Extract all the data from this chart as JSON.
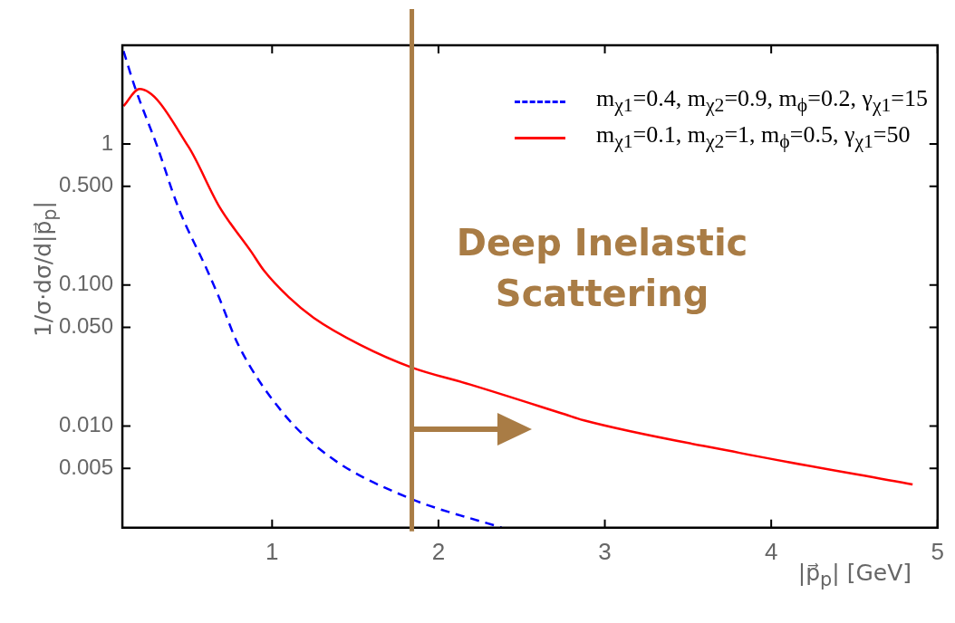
{
  "chart_data": {
    "type": "line",
    "xlabel": "|p⃗$_{p}$| [GeV]",
    "ylabel": "1/σ·dσ/d|p⃗$_{p}$|",
    "log": "y",
    "xlim": [
      0.1,
      5
    ],
    "xticks": [
      1,
      2,
      3,
      4,
      5
    ],
    "ylim": [
      0.0019,
      5
    ],
    "yticks": [
      {
        "value": 0.005,
        "label": "0.005"
      },
      {
        "value": 0.01,
        "label": "0.010"
      },
      {
        "value": 0.05,
        "label": "0.050"
      },
      {
        "value": 0.1,
        "label": "0.100"
      },
      {
        "value": 0.5,
        "label": "0.500"
      },
      1
    ],
    "legend": "top right",
    "series": [
      {
        "name": "m$_{χ1}$=0.4, m$_{χ2}$=0.9, m$_{ϕ}$=0.2, γ$_{χ1}$=15",
        "color": "#0000ff",
        "line_style": "dashed",
        "x": [
          0.107,
          0.175,
          0.31,
          0.435,
          0.61,
          0.68,
          0.797,
          1.06,
          1.345,
          1.81,
          2.38
        ],
        "values": [
          4.55,
          2.53,
          0.956,
          0.357,
          0.127,
          0.082,
          0.0376,
          0.0126,
          0.00607,
          0.00313,
          0.0019
        ]
      },
      {
        "name": "m$_{χ1}$=0.1, m$_{χ2}$=1, m$_{ϕ}$=0.5, γ$_{χ1}$=50",
        "color": "#ff0000",
        "line_style": "solid",
        "x": [
          0.107,
          0.203,
          0.497,
          0.684,
          0.876,
          0.95,
          1.1,
          1.25,
          1.53,
          1.84,
          2.19,
          2.76,
          2.87,
          3.81,
          4.85
        ],
        "values": [
          1.85,
          2.45,
          0.956,
          0.357,
          0.171,
          0.127,
          0.082,
          0.0585,
          0.0376,
          0.026,
          0.0197,
          0.0121,
          0.011,
          0.00645,
          0.00385
        ]
      }
    ],
    "ref_lines": [
      {
        "axis": "x",
        "value": 1.84,
        "label": "Deep Inelastic Scattering",
        "color": "#a97c45"
      }
    ]
  }
}
